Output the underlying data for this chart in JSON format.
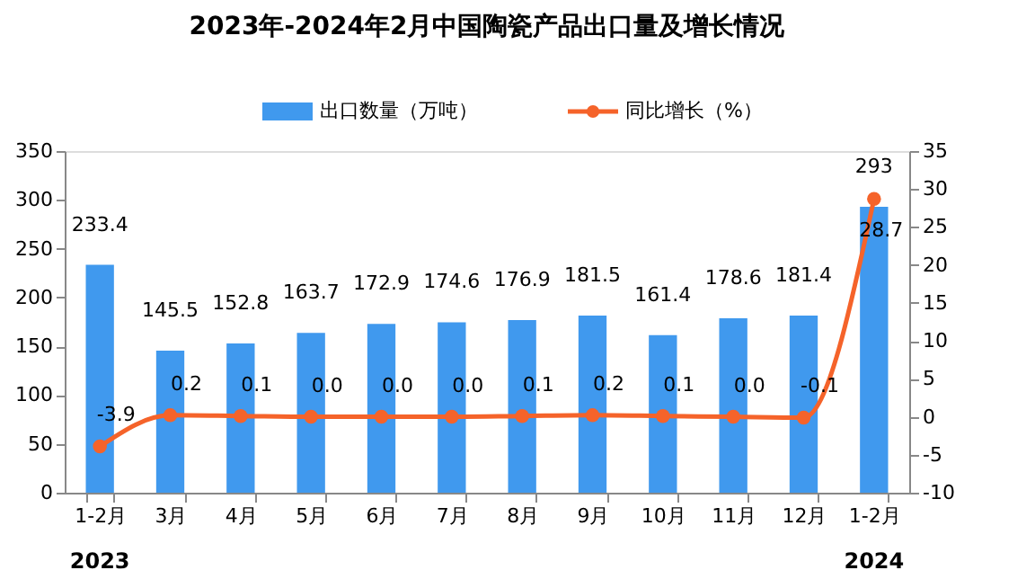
{
  "chart_data": {
    "type": "bar",
    "title": "2023年-2024年2月中国陶瓷产品出口量及增长情况",
    "categories": [
      "1-2月",
      "3月",
      "4月",
      "5月",
      "6月",
      "7月",
      "8月",
      "9月",
      "10月",
      "11月",
      "12月",
      "1-2月"
    ],
    "series": [
      {
        "name": "出口数量（万吨）",
        "color": "#4099ee",
        "values": [
          233.4,
          145.5,
          152.8,
          163.7,
          172.9,
          174.6,
          176.9,
          181.5,
          161.4,
          178.6,
          181.4,
          293
        ],
        "value_labels": [
          "233.4",
          "145.5",
          "152.8",
          "163.7",
          "172.9",
          "174.6",
          "176.9",
          "181.5",
          "161.4",
          "178.6",
          "181.4",
          "293"
        ]
      },
      {
        "name": "同比增长（%）",
        "type": "line",
        "axis": "y2",
        "color": "#f5632a",
        "values": [
          -3.9,
          0.2,
          0.1,
          0.0,
          0.0,
          0.0,
          0.1,
          0.2,
          0.1,
          0.0,
          -0.1,
          28.7
        ],
        "value_labels": [
          "-3.9",
          "0.2",
          "0.1",
          "0.0",
          "0.0",
          "0.0",
          "0.1",
          "0.2",
          "0.1",
          "0.0",
          "-0.1",
          "28.7"
        ]
      }
    ],
    "ylim": [
      0,
      350
    ],
    "yticks": [
      0,
      50,
      100,
      150,
      200,
      250,
      300,
      350
    ],
    "y2lim": [
      -10,
      35
    ],
    "y2ticks": [
      -10,
      -5,
      0,
      5,
      10,
      15,
      20,
      25,
      30,
      35
    ],
    "grid": false,
    "legend": "top",
    "marker": "circle",
    "line_style": "solid",
    "annotations": [
      "2023",
      "2024"
    ]
  }
}
